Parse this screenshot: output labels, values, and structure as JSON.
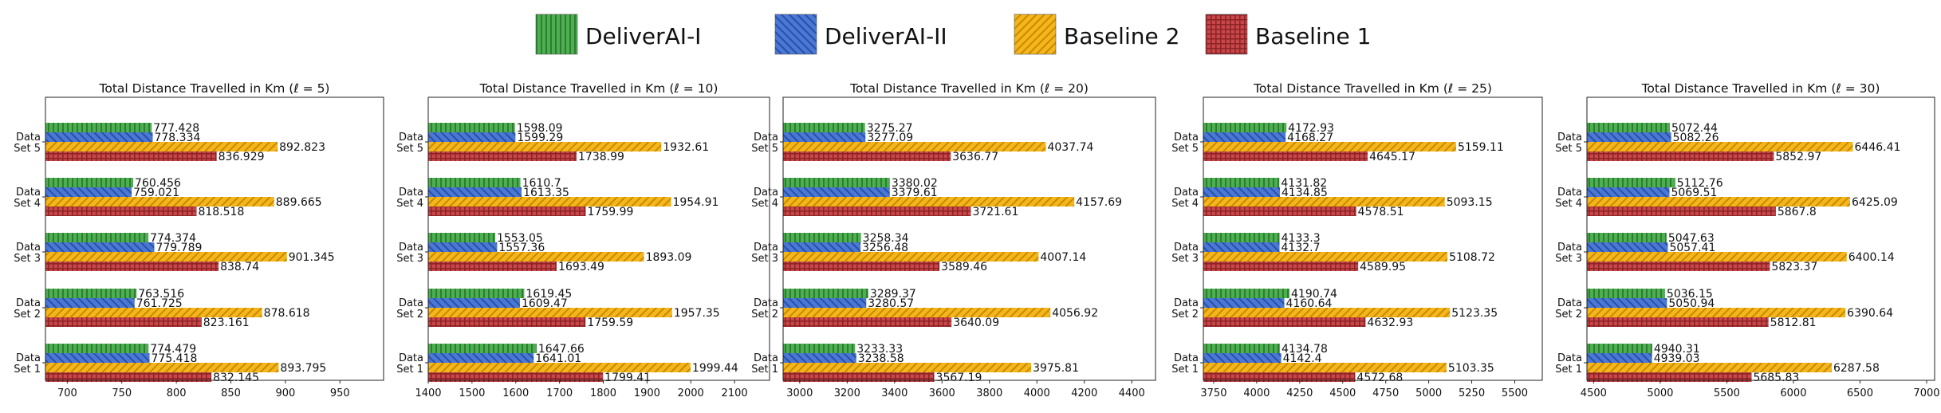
{
  "legend": {
    "placement": "top-center",
    "items": [
      {
        "name": "DeliverAI-I",
        "color": "#4caf50",
        "pattern": "vertical-stripes"
      },
      {
        "name": "DeliverAI-II",
        "color": "#4a78d6",
        "pattern": "diagonal-back"
      },
      {
        "name": "Baseline 2",
        "color": "#f5b61c",
        "pattern": "diagonal-fwd"
      },
      {
        "name": "Baseline 1",
        "color": "#c8474a",
        "pattern": "crosshatch"
      }
    ]
  },
  "chart_data": [
    {
      "type": "bar",
      "orientation": "horizontal",
      "title": "Total Distance Travelled in Km (ℓ = 5)",
      "categories": [
        "Data Set 1",
        "Data Set 2",
        "Data Set 3",
        "Data Set 4",
        "Data Set 5"
      ],
      "xlim": [
        680,
        990
      ],
      "xticks": [
        700,
        750,
        800,
        850,
        900,
        950
      ],
      "series": [
        {
          "name": "DeliverAI-I",
          "values": [
            774.479,
            763.516,
            774.374,
            760.456,
            777.428
          ],
          "labels": [
            "774.479",
            "763.516",
            "774.374",
            "760.456",
            "777.428"
          ]
        },
        {
          "name": "DeliverAI-II",
          "values": [
            775.418,
            761.725,
            779.789,
            759.021,
            778.334
          ],
          "labels": [
            "775.418",
            "761.725",
            "779.789",
            "759.021",
            "778.334"
          ]
        },
        {
          "name": "Baseline 2",
          "values": [
            893.795,
            878.618,
            901.345,
            889.665,
            892.823
          ],
          "labels": [
            "893.795",
            "878.618",
            "901.345",
            "889.665",
            "892.823"
          ]
        },
        {
          "name": "Baseline 1",
          "values": [
            832.145,
            823.161,
            838.74,
            818.518,
            836.929
          ],
          "labels": [
            "832.145",
            "823.161",
            "838.74",
            "818.518",
            "836.929"
          ]
        }
      ]
    },
    {
      "type": "bar",
      "orientation": "horizontal",
      "title": "Total Distance Travelled in Km (ℓ = 10)",
      "categories": [
        "Data Set 1",
        "Data Set 2",
        "Data Set 3",
        "Data Set 4",
        "Data Set 5"
      ],
      "xlim": [
        1400,
        2180
      ],
      "xticks": [
        1400,
        1500,
        1600,
        1700,
        1800,
        1900,
        2000,
        2100
      ],
      "series": [
        {
          "name": "DeliverAI-I",
          "values": [
            1647.66,
            1619.45,
            1553.05,
            1610.7,
            1598.09
          ],
          "labels": [
            "1647.66",
            "1619.45",
            "1553.05",
            "1610.7",
            "1598.09"
          ]
        },
        {
          "name": "DeliverAI-II",
          "values": [
            1641.01,
            1609.47,
            1557.36,
            1613.35,
            1599.29
          ],
          "labels": [
            "1641.01",
            "1609.47",
            "1557.36",
            "1613.35",
            "1599.29"
          ]
        },
        {
          "name": "Baseline 2",
          "values": [
            1999.44,
            1957.35,
            1893.09,
            1954.91,
            1932.61
          ],
          "labels": [
            "1999.44",
            "1957.35",
            "1893.09",
            "1954.91",
            "1932.61"
          ]
        },
        {
          "name": "Baseline 1",
          "values": [
            1799.41,
            1759.59,
            1693.49,
            1759.99,
            1738.99
          ],
          "labels": [
            "1799.41",
            "1759.59",
            "1693.49",
            "1759.99",
            "1738.99"
          ]
        }
      ]
    },
    {
      "type": "bar",
      "orientation": "horizontal",
      "title": "Total Distance Travelled in Km (ℓ = 20)",
      "categories": [
        "Data Set 1",
        "Data Set 2",
        "Data Set 3",
        "Data Set 4",
        "Data Set 5"
      ],
      "xlim": [
        2930,
        4500
      ],
      "xticks": [
        3000,
        3200,
        3400,
        3600,
        3800,
        4000,
        4200,
        4400
      ],
      "series": [
        {
          "name": "DeliverAI-I",
          "values": [
            3233.33,
            3289.37,
            3258.34,
            3380.02,
            3275.27
          ],
          "labels": [
            "3233.33",
            "3289.37",
            "3258.34",
            "3380.02",
            "3275.27"
          ]
        },
        {
          "name": "DeliverAI-II",
          "values": [
            3238.58,
            3280.57,
            3256.48,
            3379.61,
            3277.09
          ],
          "labels": [
            "3238.58",
            "3280.57",
            "3256.48",
            "3379.61",
            "3277.09"
          ]
        },
        {
          "name": "Baseline 2",
          "values": [
            3975.81,
            4056.92,
            4007.14,
            4157.69,
            4037.74
          ],
          "labels": [
            "3975.81",
            "4056.92",
            "4007.14",
            "4157.69",
            "4037.74"
          ]
        },
        {
          "name": "Baseline 1",
          "values": [
            3567.19,
            3640.09,
            3589.46,
            3721.61,
            3636.77
          ],
          "labels": [
            "3567.19",
            "3640.09",
            "3589.46",
            "3721.61",
            "3636.77"
          ]
        }
      ]
    },
    {
      "type": "bar",
      "orientation": "horizontal",
      "title": "Total Distance Travelled in Km (ℓ = 25)",
      "categories": [
        "Data Set 1",
        "Data Set 2",
        "Data Set 3",
        "Data Set 4",
        "Data Set 5"
      ],
      "xlim": [
        3690,
        5660
      ],
      "xticks": [
        3750,
        4000,
        4250,
        4500,
        4750,
        5000,
        5250,
        5500
      ],
      "series": [
        {
          "name": "DeliverAI-I",
          "values": [
            4134.78,
            4190.74,
            4133.3,
            4131.82,
            4172.93
          ],
          "labels": [
            "4134.78",
            "4190.74",
            "4133.3",
            "4131.82",
            "4172.93"
          ]
        },
        {
          "name": "DeliverAI-II",
          "values": [
            4142.4,
            4160.64,
            4132.7,
            4134.85,
            4168.27
          ],
          "labels": [
            "4142.4",
            "4160.64",
            "4132.7",
            "4134.85",
            "4168.27"
          ]
        },
        {
          "name": "Baseline 2",
          "values": [
            5103.35,
            5123.35,
            5108.72,
            5093.15,
            5159.11
          ],
          "labels": [
            "5103.35",
            "5123.35",
            "5108.72",
            "5093.15",
            "5159.11"
          ]
        },
        {
          "name": "Baseline 1",
          "values": [
            4572.68,
            4632.93,
            4589.95,
            4578.51,
            4645.17
          ],
          "labels": [
            "4572.68",
            "4632.93",
            "4589.95",
            "4578.51",
            "4645.17"
          ]
        }
      ]
    },
    {
      "type": "bar",
      "orientation": "horizontal",
      "title": "Total Distance Travelled in Km (ℓ = 30)",
      "categories": [
        "Data Set 1",
        "Data Set 2",
        "Data Set 3",
        "Data Set 4",
        "Data Set 5"
      ],
      "xlim": [
        4450,
        7060
      ],
      "xticks": [
        4500,
        5000,
        5500,
        6000,
        6500,
        7000
      ],
      "series": [
        {
          "name": "DeliverAI-I",
          "values": [
            4940.31,
            5036.15,
            5047.63,
            5112.76,
            5072.44
          ],
          "labels": [
            "4940.31",
            "5036.15",
            "5047.63",
            "5112.76",
            "5072.44"
          ]
        },
        {
          "name": "DeliverAI-II",
          "values": [
            4939.03,
            5050.94,
            5057.41,
            5069.51,
            5082.26
          ],
          "labels": [
            "4939.03",
            "5050.94",
            "5057.41",
            "5069.51",
            "5082.26"
          ]
        },
        {
          "name": "Baseline 2",
          "values": [
            6287.58,
            6390.64,
            6400.14,
            6425.09,
            6446.41
          ],
          "labels": [
            "6287.58",
            "6390.64",
            "6400.14",
            "6425.09",
            "6446.41"
          ]
        },
        {
          "name": "Baseline 1",
          "values": [
            5685.83,
            5812.81,
            5823.37,
            5867.8,
            5852.97
          ],
          "labels": [
            "5685.83",
            "5812.81",
            "5823.37",
            "5867.8",
            "5852.97"
          ]
        }
      ]
    }
  ]
}
